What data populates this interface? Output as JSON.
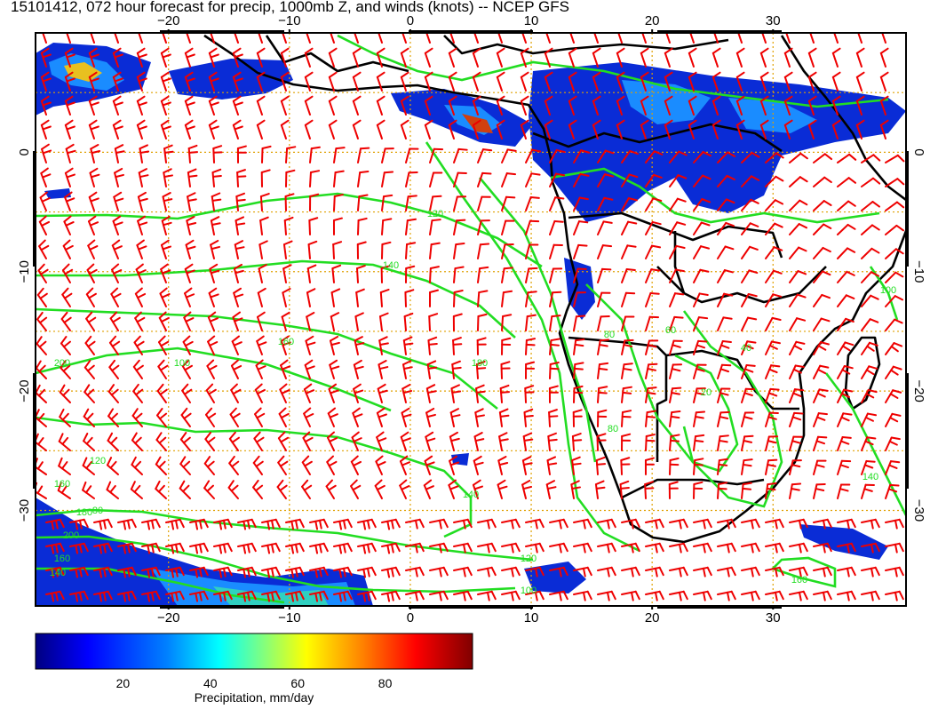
{
  "title": "15101412, 072 hour forecast for precip, 1000mb Z, and winds (knots) -- NCEP GFS",
  "map": {
    "lon_range": [
      -31,
      41
    ],
    "lat_range": [
      -38,
      10
    ],
    "lon_ticks": [
      -20,
      -10,
      0,
      10,
      20,
      30
    ],
    "lat_ticks": [
      0,
      -10,
      -20,
      -30
    ],
    "top_labels": [
      "−20",
      "−10",
      "0",
      "10",
      "20",
      "30"
    ],
    "bottom_labels": [
      "−20",
      "−10",
      "0",
      "10",
      "20",
      "30"
    ],
    "left_labels": [
      "0",
      "−10",
      "−20",
      "−30"
    ],
    "right_labels": [
      "0",
      "−10",
      "−20",
      "−30"
    ],
    "grid": true,
    "colors": {
      "frame": "#000000",
      "grid": "#e0a000",
      "contour": "#22dd22",
      "wind_barb": "#ee0000",
      "coastline": "#000000"
    },
    "contour_labels": [
      "120",
      "140",
      "160",
      "180",
      "200",
      "120",
      "140",
      "160",
      "180",
      "200",
      "160",
      "140",
      "120",
      "100",
      "80",
      "80",
      "60",
      "40",
      "20",
      "80",
      "100",
      "140",
      "160",
      "100"
    ]
  },
  "colorbar": {
    "label": "Precipitation, mm/day",
    "ticks": [
      "20",
      "40",
      "60",
      "80"
    ],
    "tick_values": [
      20,
      40,
      60,
      80
    ],
    "range": [
      0,
      100
    ],
    "colors": [
      "#000080",
      "#0000ff",
      "#0080ff",
      "#00ffff",
      "#80ff80",
      "#ffff00",
      "#ff8000",
      "#ff0000",
      "#800000"
    ]
  }
}
